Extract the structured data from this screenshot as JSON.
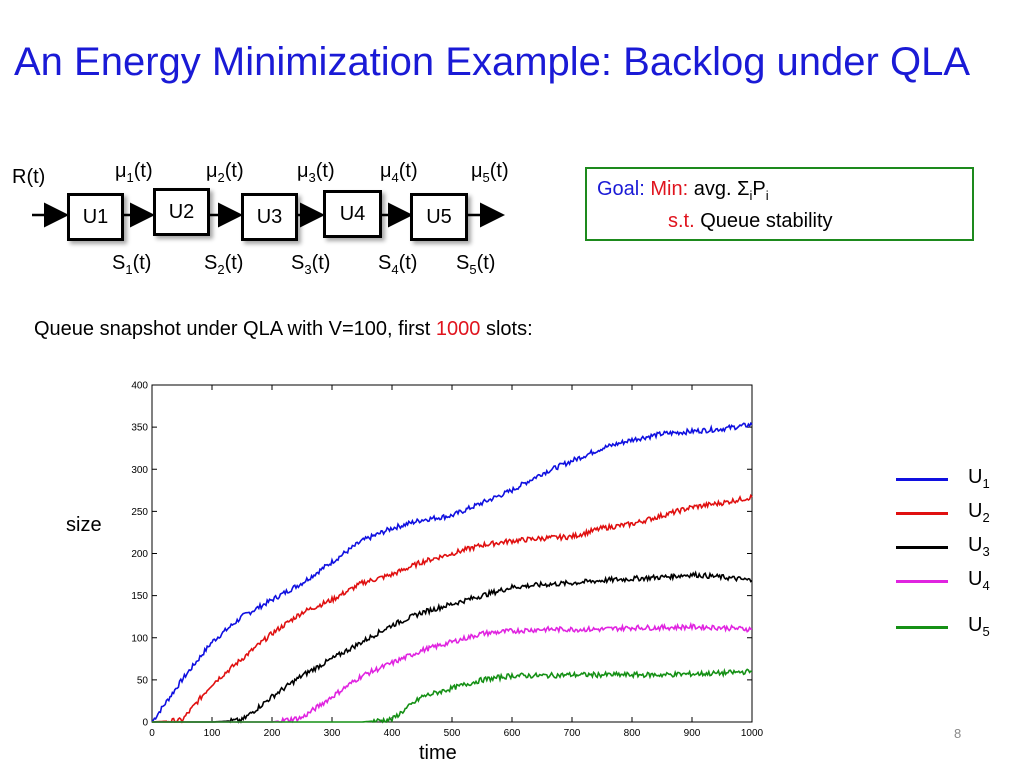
{
  "slide": {
    "title": "An Energy Minimization Example: Backlog under QLA",
    "page_number": "8"
  },
  "diagram": {
    "input_label": "R(t)",
    "units": [
      {
        "name": "U1",
        "mu": "μ",
        "mu_sub": "1",
        "mu_suffix": "(t)",
        "s": "S",
        "s_sub": "1",
        "s_suffix": "(t)"
      },
      {
        "name": "U2",
        "mu": "μ",
        "mu_sub": "2",
        "mu_suffix": "(t)",
        "s": "S",
        "s_sub": "2",
        "s_suffix": "(t)"
      },
      {
        "name": "U3",
        "mu": "μ",
        "mu_sub": "3",
        "mu_suffix": "(t)",
        "s": "S",
        "s_sub": "3",
        "s_suffix": "(t)"
      },
      {
        "name": "U4",
        "mu": "μ",
        "mu_sub": "4",
        "mu_suffix": "(t)",
        "s": "S",
        "s_sub": "4",
        "s_suffix": "(t)"
      },
      {
        "name": "U5",
        "mu": "μ",
        "mu_sub": "5",
        "mu_suffix": "(t)",
        "s": "S",
        "s_sub": "5",
        "s_suffix": "(t)"
      }
    ]
  },
  "goal": {
    "goal_label": "Goal:",
    "min_label": "Min:",
    "objective": "avg. Σ",
    "objective_sub1": "i",
    "objective_mid": "P",
    "objective_sub2": "i",
    "st_label": "s.t.",
    "constraint": "Queue stability"
  },
  "snapshot": {
    "prefix": "Queue snapshot under QLA with V=100, first ",
    "highlight": "1000",
    "suffix": " slots:"
  },
  "colors": {
    "title": "#1a1ad6",
    "goal": "#1a1ad6",
    "min": "#e0141e",
    "highlight": "#e0141e",
    "box_border": "#1d8a1d"
  },
  "chart_data": {
    "type": "line",
    "xlabel": "time",
    "ylabel": "size",
    "xlim": [
      0,
      1000
    ],
    "ylim": [
      0,
      400
    ],
    "xticks": [
      0,
      100,
      200,
      300,
      400,
      500,
      600,
      700,
      800,
      900,
      1000
    ],
    "yticks": [
      0,
      50,
      100,
      150,
      200,
      250,
      300,
      350,
      400
    ],
    "grid": false,
    "legend": "right",
    "x": [
      0,
      50,
      100,
      150,
      200,
      250,
      300,
      350,
      400,
      450,
      500,
      550,
      600,
      650,
      700,
      750,
      800,
      850,
      900,
      950,
      1000
    ],
    "series": [
      {
        "name": "U",
        "sub": "1",
        "color": "#1010e0",
        "values": [
          0,
          50,
          95,
          125,
          145,
          165,
          190,
          215,
          230,
          240,
          245,
          260,
          275,
          295,
          310,
          325,
          335,
          342,
          345,
          348,
          353
        ]
      },
      {
        "name": "U",
        "sub": "2",
        "color": "#e01010",
        "values": [
          0,
          2,
          45,
          75,
          105,
          130,
          145,
          165,
          175,
          190,
          200,
          210,
          215,
          218,
          220,
          230,
          235,
          245,
          255,
          260,
          267
        ]
      },
      {
        "name": "U",
        "sub": "3",
        "color": "#000000",
        "values": [
          0,
          0,
          0,
          2,
          30,
          55,
          75,
          95,
          115,
          130,
          140,
          150,
          160,
          163,
          165,
          168,
          170,
          172,
          175,
          172,
          168
        ]
      },
      {
        "name": "U",
        "sub": "4",
        "color": "#e024e0",
        "values": [
          0,
          0,
          0,
          0,
          0,
          5,
          30,
          55,
          70,
          85,
          95,
          105,
          108,
          110,
          110,
          110,
          112,
          112,
          113,
          112,
          110
        ]
      },
      {
        "name": "U",
        "sub": "5",
        "color": "#159015",
        "values": [
          0,
          0,
          0,
          0,
          0,
          0,
          0,
          0,
          3,
          30,
          40,
          50,
          55,
          55,
          56,
          56,
          56,
          56,
          57,
          58,
          60
        ]
      }
    ]
  }
}
